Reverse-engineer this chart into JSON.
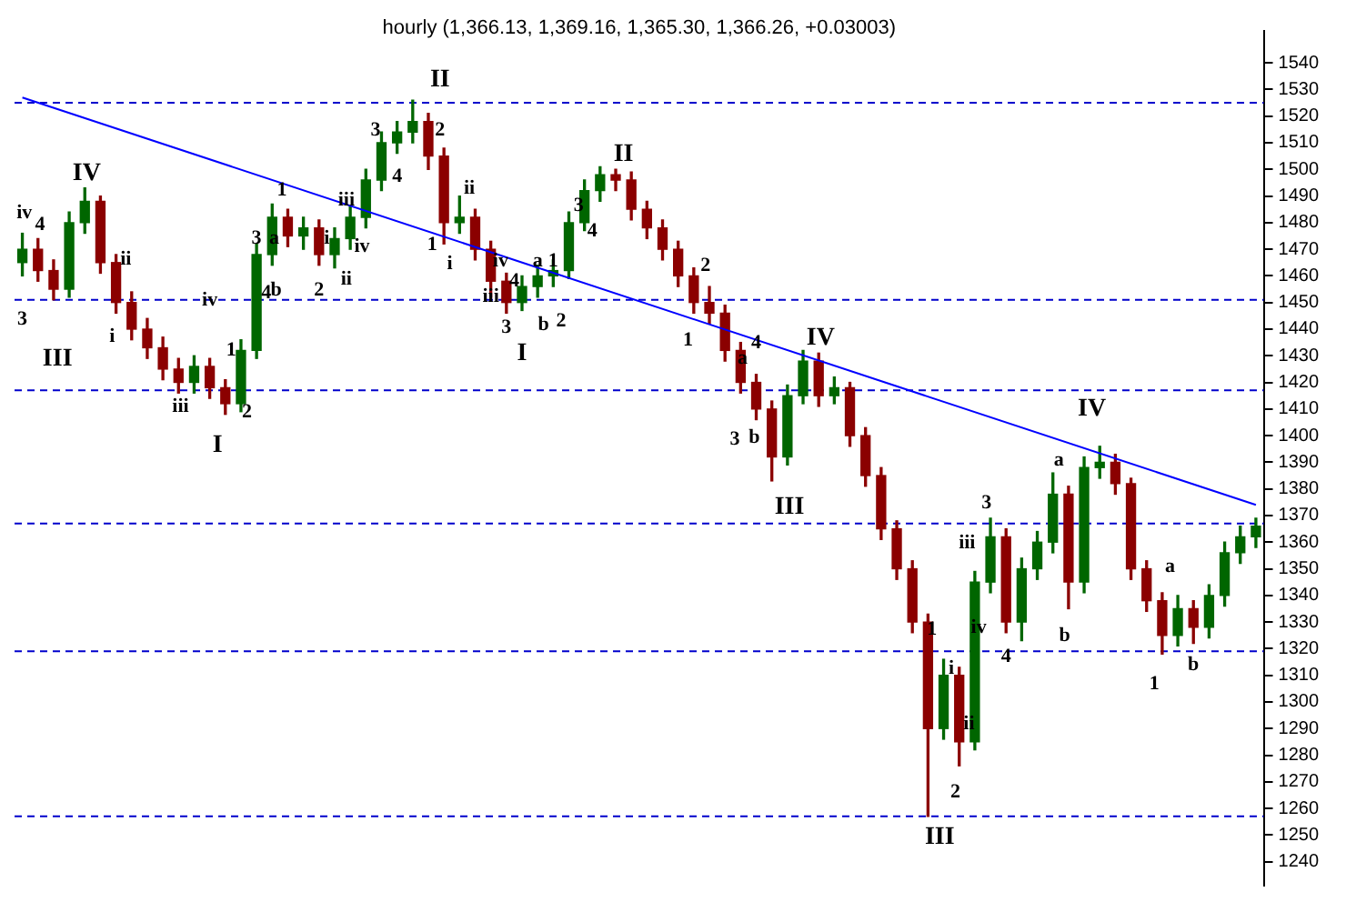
{
  "chart_data": {
    "type": "candlestick",
    "title": "hourly (1,366.13, 1,369.16, 1,365.30, 1,366.26, +0.03003)",
    "categories": [
      null,
      null,
      null,
      null,
      null,
      null,
      null,
      null,
      null,
      null,
      null,
      null,
      null,
      null,
      null,
      null,
      null,
      null,
      null,
      null,
      null,
      null,
      null,
      null,
      null,
      null,
      null,
      null,
      null,
      null,
      null,
      null,
      null,
      null,
      null,
      null,
      null,
      null,
      null,
      null,
      null,
      null,
      null,
      null,
      null,
      null,
      null,
      null,
      null,
      null,
      null,
      null,
      null,
      null,
      null,
      null,
      null,
      null,
      null,
      null,
      null,
      null,
      null,
      null,
      null,
      null,
      null,
      null,
      null,
      null,
      null,
      null,
      null,
      null,
      null,
      null,
      null,
      null,
      null,
      null
    ],
    "ohlc": [
      [
        1465,
        1476,
        1460,
        1470
      ],
      [
        1470,
        1474,
        1458,
        1462
      ],
      [
        1462,
        1466,
        1451,
        1455
      ],
      [
        1455,
        1484,
        1452,
        1480
      ],
      [
        1480,
        1493,
        1476,
        1488
      ],
      [
        1488,
        1490,
        1461,
        1465
      ],
      [
        1465,
        1468,
        1446,
        1450
      ],
      [
        1450,
        1454,
        1436,
        1440
      ],
      [
        1440,
        1444,
        1429,
        1433
      ],
      [
        1433,
        1437,
        1421,
        1425
      ],
      [
        1425,
        1429,
        1416,
        1420
      ],
      [
        1420,
        1430,
        1416,
        1426
      ],
      [
        1426,
        1429,
        1414,
        1418
      ],
      [
        1418,
        1421,
        1408,
        1412
      ],
      [
        1412,
        1436,
        1409,
        1432
      ],
      [
        1432,
        1472,
        1429,
        1468
      ],
      [
        1468,
        1487,
        1464,
        1482
      ],
      [
        1482,
        1485,
        1471,
        1475
      ],
      [
        1475,
        1482,
        1470,
        1478
      ],
      [
        1478,
        1481,
        1464,
        1468
      ],
      [
        1468,
        1478,
        1463,
        1474
      ],
      [
        1474,
        1486,
        1470,
        1482
      ],
      [
        1482,
        1500,
        1478,
        1496
      ],
      [
        1496,
        1514,
        1492,
        1510
      ],
      [
        1510,
        1518,
        1506,
        1514
      ],
      [
        1514,
        1526,
        1510,
        1518
      ],
      [
        1518,
        1521,
        1500,
        1505
      ],
      [
        1505,
        1508,
        1472,
        1480
      ],
      [
        1480,
        1490,
        1476,
        1482
      ],
      [
        1482,
        1485,
        1466,
        1470
      ],
      [
        1470,
        1473,
        1452,
        1458
      ],
      [
        1458,
        1461,
        1446,
        1450
      ],
      [
        1450,
        1460,
        1447,
        1456
      ],
      [
        1456,
        1464,
        1452,
        1460
      ],
      [
        1460,
        1466,
        1456,
        1462
      ],
      [
        1462,
        1484,
        1459,
        1480
      ],
      [
        1480,
        1496,
        1477,
        1492
      ],
      [
        1492,
        1501,
        1488,
        1498
      ],
      [
        1498,
        1500,
        1492,
        1496
      ],
      [
        1496,
        1499,
        1481,
        1485
      ],
      [
        1485,
        1488,
        1474,
        1478
      ],
      [
        1478,
        1481,
        1466,
        1470
      ],
      [
        1470,
        1473,
        1456,
        1460
      ],
      [
        1460,
        1463,
        1446,
        1450
      ],
      [
        1450,
        1456,
        1442,
        1446
      ],
      [
        1446,
        1449,
        1428,
        1432
      ],
      [
        1432,
        1435,
        1416,
        1420
      ],
      [
        1420,
        1423,
        1406,
        1410
      ],
      [
        1410,
        1413,
        1383,
        1392
      ],
      [
        1392,
        1419,
        1389,
        1415
      ],
      [
        1415,
        1432,
        1412,
        1428
      ],
      [
        1428,
        1431,
        1411,
        1415
      ],
      [
        1415,
        1422,
        1412,
        1418
      ],
      [
        1418,
        1420,
        1396,
        1400
      ],
      [
        1400,
        1403,
        1381,
        1385
      ],
      [
        1385,
        1388,
        1361,
        1365
      ],
      [
        1365,
        1368,
        1346,
        1350
      ],
      [
        1350,
        1353,
        1326,
        1330
      ],
      [
        1330,
        1333,
        1257,
        1290
      ],
      [
        1290,
        1316,
        1286,
        1310
      ],
      [
        1310,
        1313,
        1276,
        1285
      ],
      [
        1285,
        1349,
        1282,
        1345
      ],
      [
        1345,
        1369,
        1341,
        1362
      ],
      [
        1362,
        1365,
        1326,
        1330
      ],
      [
        1330,
        1354,
        1323,
        1350
      ],
      [
        1350,
        1364,
        1346,
        1360
      ],
      [
        1360,
        1386,
        1356,
        1378
      ],
      [
        1378,
        1381,
        1335,
        1345
      ],
      [
        1345,
        1392,
        1341,
        1388
      ],
      [
        1388,
        1396,
        1384,
        1390
      ],
      [
        1390,
        1393,
        1378,
        1382
      ],
      [
        1382,
        1384,
        1346,
        1350
      ],
      [
        1350,
        1353,
        1334,
        1338
      ],
      [
        1338,
        1341,
        1318,
        1325
      ],
      [
        1325,
        1340,
        1321,
        1335
      ],
      [
        1335,
        1338,
        1322,
        1328
      ],
      [
        1328,
        1344,
        1324,
        1340
      ],
      [
        1340,
        1360,
        1336,
        1356
      ],
      [
        1356,
        1366,
        1352,
        1362
      ],
      [
        1362,
        1369,
        1358,
        1366
      ]
    ],
    "colors": [
      "#006600",
      "#8b0000",
      "#8b0000",
      "#006600",
      "#006600",
      "#8b0000",
      "#8b0000",
      "#8b0000",
      "#8b0000",
      "#8b0000",
      "#8b0000",
      "#006600",
      "#8b0000",
      "#8b0000",
      "#006600",
      "#006600",
      "#006600",
      "#8b0000",
      "#006600",
      "#8b0000",
      "#006600",
      "#006600",
      "#006600",
      "#006600",
      "#006600",
      "#006600",
      "#8b0000",
      "#8b0000",
      "#006600",
      "#8b0000",
      "#8b0000",
      "#8b0000",
      "#006600",
      "#006600",
      "#006600",
      "#006600",
      "#006600",
      "#006600",
      "#8b0000",
      "#8b0000",
      "#8b0000",
      "#8b0000",
      "#8b0000",
      "#8b0000",
      "#8b0000",
      "#8b0000",
      "#8b0000",
      "#8b0000",
      "#8b0000",
      "#006600",
      "#006600",
      "#8b0000",
      "#006600",
      "#8b0000",
      "#8b0000",
      "#8b0000",
      "#8b0000",
      "#8b0000",
      "#8b0000",
      "#006600",
      "#8b0000",
      "#006600",
      "#006600",
      "#8b0000",
      "#006600",
      "#006600",
      "#006600",
      "#8b0000",
      "#006600",
      "#006600",
      "#8b0000",
      "#8b0000",
      "#8b0000",
      "#8b0000",
      "#006600",
      "#8b0000",
      "#006600",
      "#006600",
      "#006600",
      "#006600"
    ],
    "series": [
      {
        "type": "line",
        "color": "#0000ff",
        "values": [
          1527,
          null,
          null,
          null,
          null,
          null,
          null,
          null,
          null,
          null,
          null,
          null,
          null,
          null,
          null,
          null,
          null,
          null,
          null,
          null,
          null,
          null,
          null,
          null,
          null,
          null,
          null,
          null,
          null,
          null,
          null,
          null,
          null,
          null,
          null,
          null,
          null,
          null,
          null,
          null,
          null,
          null,
          null,
          null,
          null,
          null,
          null,
          null,
          null,
          null,
          null,
          null,
          null,
          null,
          null,
          null,
          null,
          null,
          null,
          null,
          null,
          null,
          null,
          null,
          null,
          null,
          null,
          null,
          null,
          null,
          null,
          null,
          null,
          null,
          null,
          null,
          null,
          null,
          null,
          1374
        ]
      }
    ],
    "ylim": [
      1231,
      1552
    ],
    "yticks": [
      1240,
      1250,
      1260,
      1270,
      1280,
      1290,
      1300,
      1310,
      1320,
      1330,
      1340,
      1350,
      1360,
      1370,
      1380,
      1390,
      1400,
      1410,
      1420,
      1430,
      1440,
      1450,
      1460,
      1470,
      1480,
      1490,
      1500,
      1510,
      1520,
      1530,
      1540
    ],
    "tick_labels": "y",
    "ref_lines": [
      {
        "axis": "y",
        "value": 1525,
        "color": "#0000cc",
        "line_style": "dashed"
      },
      {
        "axis": "y",
        "value": 1451,
        "color": "#0000cc",
        "line_style": "dashed"
      },
      {
        "axis": "y",
        "value": 1417,
        "color": "#0000cc",
        "line_style": "dashed"
      },
      {
        "axis": "y",
        "value": 1367,
        "color": "#0000cc",
        "line_style": "dashed"
      },
      {
        "axis": "y",
        "value": 1319,
        "color": "#0000cc",
        "line_style": "dashed"
      },
      {
        "axis": "y",
        "value": 1257,
        "color": "#0000cc",
        "line_style": "dashed"
      }
    ],
    "annotations": [
      "IV",
      "iv",
      "4",
      "3",
      "III",
      "ii",
      "i",
      "iii",
      "iv",
      "1",
      "2",
      "I",
      "1",
      "3",
      "a",
      "4",
      "b",
      "2",
      "iii",
      "i",
      "iv",
      "ii",
      "3",
      "4",
      "II",
      "2",
      "ii",
      "1",
      "i",
      "iii",
      "iv",
      "4",
      "a",
      "1",
      "3",
      "b",
      "2",
      "I",
      "II",
      "3",
      "4",
      "2",
      "1",
      "a",
      "4",
      "IV",
      "3",
      "b",
      "III",
      "1",
      "i",
      "ii",
      "2",
      "III",
      "iii",
      "iv",
      "3",
      "4",
      "a",
      "b",
      "IV",
      "a",
      "1",
      "b"
    ]
  }
}
